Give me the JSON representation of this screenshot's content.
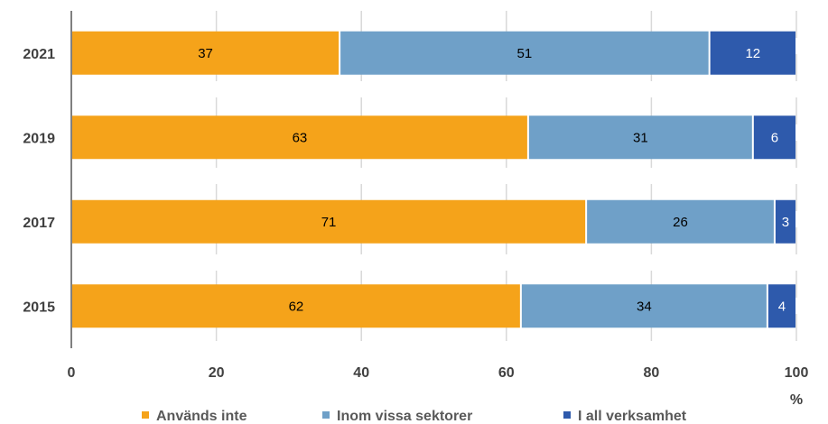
{
  "chart_data": {
    "type": "bar",
    "orientation": "horizontal",
    "stacked": true,
    "categories": [
      "2021",
      "2019",
      "2017",
      "2015"
    ],
    "series": [
      {
        "name": "Används inte",
        "color": "#F5A31A",
        "label_color": "#000000",
        "values": [
          37,
          63,
          71,
          62
        ]
      },
      {
        "name": "Inom vissa sektorer",
        "color": "#6FA0C8",
        "label_color": "#000000",
        "values": [
          51,
          31,
          26,
          34
        ]
      },
      {
        "name": "I all verksamhet",
        "color": "#2E5AAC",
        "label_color": "#ffffff",
        "values": [
          12,
          6,
          3,
          4
        ]
      }
    ],
    "xlim": [
      0,
      100
    ],
    "xticks": [
      0,
      20,
      40,
      60,
      80,
      100
    ],
    "xunit": "%",
    "grid": true,
    "legend_position": "bottom"
  }
}
